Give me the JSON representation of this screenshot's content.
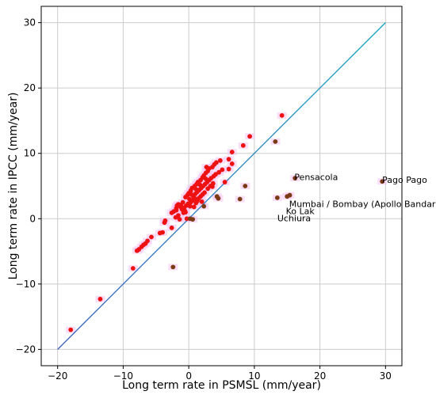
{
  "chart_data": {
    "type": "scatter",
    "title": "",
    "xlabel": "Long term rate in PSMSL (mm/year)",
    "ylabel": "Long term rate in IPCC (mm/year)",
    "xlim": [
      -22.5,
      32.5
    ],
    "ylim": [
      -22.5,
      32.5
    ],
    "xticks": [
      -20,
      -10,
      0,
      10,
      20,
      30
    ],
    "yticks": [
      -20,
      -10,
      0,
      10,
      20,
      30
    ],
    "xtick_labels": [
      "−20",
      "−10",
      "0",
      "10",
      "20",
      "30"
    ],
    "ytick_labels": [
      "−20",
      "−10",
      "0",
      "10",
      "20",
      "30"
    ],
    "grid": true,
    "colors": {
      "positive": "#ee1111",
      "negative": "#7a3b14",
      "halo": "#f6c2f2",
      "line_low": "#3b5fc0",
      "line_high": "#1aa3c8"
    },
    "reference_line": {
      "x": [
        -20,
        30
      ],
      "y": [
        -20,
        30
      ]
    },
    "series": [
      {
        "points": [
          [
            -18.0,
            -17.0
          ],
          [
            -13.5,
            -12.3
          ],
          [
            -8.5,
            -7.6
          ],
          [
            -7.9,
            -4.9
          ],
          [
            -7.6,
            -4.7
          ],
          [
            -7.2,
            -4.3
          ],
          [
            -6.9,
            -4.0
          ],
          [
            -6.6,
            -3.8
          ],
          [
            -6.3,
            -3.4
          ],
          [
            -5.7,
            -2.8
          ],
          [
            -4.4,
            -2.2
          ],
          [
            -4.0,
            -2.1
          ],
          [
            -3.7,
            -0.6
          ],
          [
            -3.6,
            -0.3
          ],
          [
            -2.6,
            0.9
          ],
          [
            -2.3,
            1.1
          ],
          [
            -1.9,
            1.3
          ],
          [
            -1.6,
            0.5
          ],
          [
            -1.4,
            -0.1
          ],
          [
            -1.1,
            1.6
          ],
          [
            -0.8,
            0.9
          ],
          [
            -0.6,
            1.2
          ],
          [
            -0.3,
            0.0
          ],
          [
            0.2,
            0.0
          ],
          [
            0.6,
            -0.1
          ],
          [
            0.8,
            1.8
          ],
          [
            1.1,
            2.4
          ],
          [
            -2.4,
            -7.4
          ],
          [
            -2.0,
            0.2
          ],
          [
            -1.2,
            2.1
          ],
          [
            2.3,
            1.9
          ],
          [
            -2.6,
            -1.4
          ]
        ]
      },
      {
        "points": [
          [
            14.2,
            15.8
          ],
          [
            9.3,
            12.6
          ],
          [
            13.2,
            11.8
          ],
          [
            8.3,
            11.2
          ],
          [
            6.6,
            10.2
          ],
          [
            6.1,
            9.1
          ],
          [
            6.6,
            8.4
          ],
          [
            4.8,
            8.9
          ],
          [
            4.2,
            8.6
          ],
          [
            3.9,
            8.3
          ],
          [
            3.6,
            7.9
          ],
          [
            5.1,
            7.5
          ],
          [
            6.1,
            7.6
          ],
          [
            4.6,
            7.1
          ],
          [
            3.1,
            7.7
          ],
          [
            2.9,
            7.3
          ],
          [
            2.6,
            7.0
          ],
          [
            2.3,
            6.6
          ],
          [
            2.1,
            6.3
          ],
          [
            1.8,
            5.9
          ],
          [
            1.4,
            5.6
          ],
          [
            1.2,
            5.3
          ],
          [
            0.9,
            5.0
          ],
          [
            0.5,
            4.7
          ],
          [
            0.3,
            4.3
          ],
          [
            0.0,
            3.9
          ],
          [
            -0.2,
            3.6
          ],
          [
            -0.5,
            3.3
          ],
          [
            0.7,
            3.4
          ],
          [
            1.0,
            3.8
          ],
          [
            1.3,
            4.1
          ],
          [
            1.6,
            4.4
          ],
          [
            1.9,
            4.7
          ],
          [
            2.2,
            5.0
          ],
          [
            2.5,
            5.3
          ],
          [
            2.8,
            5.6
          ],
          [
            3.1,
            5.9
          ],
          [
            3.4,
            6.2
          ],
          [
            3.8,
            6.5
          ],
          [
            4.1,
            6.8
          ],
          [
            1.5,
            3.1
          ],
          [
            1.8,
            3.4
          ],
          [
            2.1,
            3.7
          ],
          [
            2.4,
            4.0
          ],
          [
            0.6,
            2.8
          ],
          [
            0.9,
            3.1
          ],
          [
            0.3,
            2.5
          ],
          [
            -0.1,
            2.3
          ],
          [
            -0.4,
            2.0
          ],
          [
            -0.7,
            1.7
          ],
          [
            -1.0,
            1.4
          ],
          [
            -1.3,
            1.9
          ],
          [
            -1.6,
            2.2
          ],
          [
            -1.9,
            1.6
          ],
          [
            -0.9,
            2.5
          ],
          [
            0.1,
            3.0
          ],
          [
            0.4,
            3.7
          ],
          [
            1.1,
            4.5
          ],
          [
            1.7,
            5.2
          ],
          [
            2.6,
            6.1
          ],
          [
            3.3,
            5.0
          ],
          [
            3.7,
            5.4
          ],
          [
            4.3,
            3.4
          ],
          [
            4.5,
            3.1
          ],
          [
            3.6,
            4.9
          ],
          [
            5.5,
            5.6
          ],
          [
            7.8,
            3.0
          ],
          [
            8.6,
            5.0
          ],
          [
            16.2,
            6.2
          ],
          [
            29.5,
            5.7
          ],
          [
            15.4,
            3.6
          ],
          [
            15.0,
            3.4
          ],
          [
            13.5,
            3.2
          ],
          [
            2.0,
            2.6
          ],
          [
            2.9,
            4.6
          ],
          [
            1.3,
            2.7
          ],
          [
            0.2,
            1.9
          ],
          [
            -0.5,
            1.0
          ],
          [
            -1.8,
            2.0
          ],
          [
            2.7,
            7.9
          ]
        ]
      }
    ],
    "annotations": [
      {
        "text": "Pensacola",
        "x": 16.1,
        "y": 5.9
      },
      {
        "text": "Pago Pago",
        "x": 29.5,
        "y": 5.5
      },
      {
        "text": "Mumbai / Bombay (Apollo Bandar)",
        "x": 15.3,
        "y": 1.8
      },
      {
        "text": "Ko Lak",
        "x": 14.8,
        "y": 0.7
      },
      {
        "text": "Uchiura",
        "x": 13.5,
        "y": -0.4
      }
    ]
  }
}
